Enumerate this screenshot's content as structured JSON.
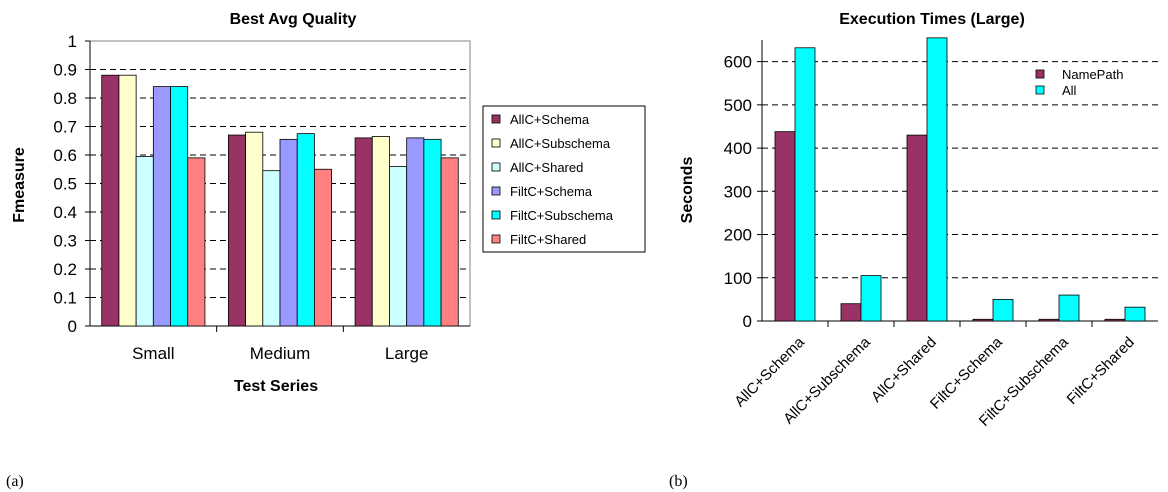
{
  "panel_labels": [
    "(a)",
    "(b)"
  ],
  "colors": {
    "AllC+Schema": "#993366",
    "AllC+Subschema": "#ffffcc",
    "AllC+Shared": "#ccffff",
    "FiltC+Schema": "#9999ff",
    "FiltC+Subschema": "#00ffff",
    "FiltC+Shared": "#ff8080",
    "NamePath": "#993366",
    "All": "#00ffff"
  },
  "chart_data": [
    {
      "type": "bar",
      "title": "Best Avg Quality",
      "xlabel": "Test Series",
      "ylabel": "Fmeasure",
      "ylim": [
        0,
        1
      ],
      "yticks": [
        "0",
        "0.1",
        "0.2",
        "0.3",
        "0.4",
        "0.5",
        "0.6",
        "0.7",
        "0.8",
        "0.9",
        "1"
      ],
      "grid": true,
      "legend": "right",
      "categories": [
        "Small",
        "Medium",
        "Large"
      ],
      "series": [
        {
          "name": "AllC+Schema",
          "values": [
            0.88,
            0.67,
            0.66
          ]
        },
        {
          "name": "AllC+Subschema",
          "values": [
            0.88,
            0.68,
            0.665
          ]
        },
        {
          "name": "AllC+Shared",
          "values": [
            0.595,
            0.545,
            0.56
          ]
        },
        {
          "name": "FiltC+Schema",
          "values": [
            0.84,
            0.655,
            0.66
          ]
        },
        {
          "name": "FiltC+Subschema",
          "values": [
            0.84,
            0.675,
            0.655
          ]
        },
        {
          "name": "FiltC+Shared",
          "values": [
            0.59,
            0.55,
            0.59
          ]
        }
      ]
    },
    {
      "type": "bar",
      "title": "Execution Times (Large)",
      "xlabel": "",
      "ylabel": "Seconds",
      "ylim": [
        0,
        650
      ],
      "yticks": [
        "0",
        "100",
        "200",
        "300",
        "400",
        "500",
        "600"
      ],
      "grid": true,
      "legend": "top-right",
      "categories": [
        "AllC+Schema",
        "AllC+Subschema",
        "AllC+Shared",
        "FiltC+Schema",
        "FiltC+Subschema",
        "FiltC+Shared"
      ],
      "series": [
        {
          "name": "NamePath",
          "values": [
            438,
            40,
            430,
            4,
            4,
            4
          ]
        },
        {
          "name": "All",
          "values": [
            632,
            105,
            655,
            50,
            60,
            32
          ]
        }
      ]
    }
  ]
}
